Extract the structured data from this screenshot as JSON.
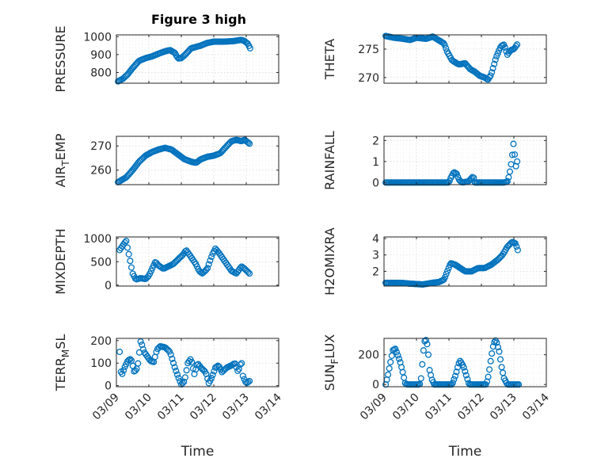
{
  "figure_title": "Figure 3 high",
  "marker_color": "#0072BD",
  "chart_data": [
    {
      "type": "scatter",
      "marker": "circle",
      "title": "Figure 3 high",
      "ylabel": "PRESSURE",
      "ylabel_parts": [
        "PRESSURE"
      ],
      "ylim": [
        740,
        1010
      ],
      "yticks": [
        800,
        900,
        1000
      ],
      "ytick_labels": [
        "800",
        "900",
        "1000"
      ],
      "xlim": [
        0,
        5
      ],
      "xticks": [
        0,
        1,
        2,
        3,
        4,
        5
      ],
      "xtick_labels": [
        "03/09",
        "03/10",
        "03/11",
        "03/12",
        "03/13",
        "03/14"
      ],
      "xlabel": "",
      "grid": "dotted",
      "curve": [
        [
          0.05,
          750
        ],
        [
          0.2,
          765
        ],
        [
          0.35,
          790
        ],
        [
          0.5,
          825
        ],
        [
          0.7,
          865
        ],
        [
          0.9,
          880
        ],
        [
          1.1,
          890
        ],
        [
          1.3,
          905
        ],
        [
          1.5,
          918
        ],
        [
          1.65,
          925
        ],
        [
          1.8,
          910
        ],
        [
          1.9,
          878
        ],
        [
          2.0,
          880
        ],
        [
          2.15,
          905
        ],
        [
          2.3,
          935
        ],
        [
          2.6,
          950
        ],
        [
          2.8,
          965
        ],
        [
          3.0,
          972
        ],
        [
          3.3,
          972
        ],
        [
          3.6,
          975
        ],
        [
          3.85,
          982
        ],
        [
          3.95,
          975
        ],
        [
          4.05,
          960
        ],
        [
          4.12,
          935
        ]
      ],
      "n_points": 110
    },
    {
      "type": "scatter",
      "marker": "circle",
      "ylabel": "THETA",
      "ylabel_parts": [
        "THETA"
      ],
      "ylim": [
        269,
        277.5
      ],
      "yticks": [
        270,
        275
      ],
      "ytick_labels": [
        "270",
        "275"
      ],
      "xlim": [
        0,
        5
      ],
      "xticks": [
        0,
        1,
        2,
        3,
        4,
        5
      ],
      "xtick_labels": [
        "03/09",
        "03/10",
        "03/11",
        "03/12",
        "03/13",
        "03/14"
      ],
      "xlabel": "",
      "grid": "dotted",
      "curve": [
        [
          0.05,
          277.3
        ],
        [
          0.3,
          277
        ],
        [
          0.6,
          276.8
        ],
        [
          0.8,
          276.6
        ],
        [
          1.0,
          277
        ],
        [
          1.3,
          276.8
        ],
        [
          1.5,
          277.2
        ],
        [
          1.7,
          276.5
        ],
        [
          1.85,
          276
        ],
        [
          1.95,
          274.5
        ],
        [
          2.1,
          273
        ],
        [
          2.3,
          272.3
        ],
        [
          2.5,
          272.5
        ],
        [
          2.65,
          271.5
        ],
        [
          2.8,
          271
        ],
        [
          2.95,
          270.3
        ],
        [
          3.1,
          270
        ],
        [
          3.2,
          269.6
        ],
        [
          3.3,
          270.5
        ],
        [
          3.45,
          273.5
        ],
        [
          3.6,
          275.5
        ],
        [
          3.7,
          275.8
        ],
        [
          3.8,
          274
        ],
        [
          3.9,
          274.8
        ],
        [
          4.0,
          275
        ],
        [
          4.1,
          275.8
        ]
      ],
      "n_points": 110
    },
    {
      "type": "scatter",
      "marker": "circle",
      "ylabel": "AIR_TEMP",
      "ylabel_parts": [
        "AIR",
        "T",
        "EMP"
      ],
      "ylim": [
        254,
        274
      ],
      "yticks": [
        260,
        270
      ],
      "ytick_labels": [
        "260",
        "270"
      ],
      "xlim": [
        0,
        5
      ],
      "xticks": [
        0,
        1,
        2,
        3,
        4,
        5
      ],
      "xtick_labels": [
        "03/09",
        "03/10",
        "03/11",
        "03/12",
        "03/13",
        "03/14"
      ],
      "xlabel": "",
      "grid": "dotted",
      "curve": [
        [
          0.05,
          255
        ],
        [
          0.3,
          257
        ],
        [
          0.5,
          260
        ],
        [
          0.7,
          263.5
        ],
        [
          0.9,
          266
        ],
        [
          1.1,
          267.5
        ],
        [
          1.3,
          268.5
        ],
        [
          1.5,
          269.2
        ],
        [
          1.7,
          268.5
        ],
        [
          1.9,
          266.5
        ],
        [
          2.1,
          264.5
        ],
        [
          2.3,
          263.5
        ],
        [
          2.45,
          263
        ],
        [
          2.6,
          264.5
        ],
        [
          2.8,
          265.5
        ],
        [
          3.0,
          266
        ],
        [
          3.2,
          267
        ],
        [
          3.4,
          270
        ],
        [
          3.55,
          272
        ],
        [
          3.7,
          272.5
        ],
        [
          3.85,
          272
        ],
        [
          3.95,
          272.5
        ],
        [
          4.1,
          271
        ]
      ],
      "n_points": 110
    },
    {
      "type": "scatter",
      "marker": "circle",
      "ylabel": "RAINFALL",
      "ylabel_parts": [
        "RAINFALL"
      ],
      "ylim": [
        -0.1,
        2.2
      ],
      "yticks": [
        0,
        1,
        2
      ],
      "ytick_labels": [
        "0",
        "1",
        "2"
      ],
      "xlim": [
        0,
        5
      ],
      "xticks": [
        0,
        1,
        2,
        3,
        4,
        5
      ],
      "xtick_labels": [
        "03/09",
        "03/10",
        "03/11",
        "03/12",
        "03/13",
        "03/14"
      ],
      "xlabel": "",
      "grid": "dotted",
      "curve": [
        [
          0.05,
          0
        ],
        [
          2.0,
          0
        ],
        [
          2.05,
          0.2
        ],
        [
          2.15,
          0.5
        ],
        [
          2.25,
          0.4
        ],
        [
          2.3,
          0.15
        ],
        [
          2.4,
          0
        ],
        [
          2.6,
          0.05
        ],
        [
          2.75,
          0.3
        ],
        [
          2.8,
          0
        ],
        [
          3.7,
          0
        ],
        [
          3.8,
          0.05
        ],
        [
          3.85,
          0.3
        ],
        [
          3.9,
          0.7
        ],
        [
          3.95,
          1.3
        ],
        [
          4.0,
          2.0
        ],
        [
          4.05,
          0.7
        ],
        [
          4.1,
          1.0
        ]
      ],
      "n_points": 110
    },
    {
      "type": "scatter",
      "marker": "circle",
      "ylabel": "MIXDEPTH",
      "ylabel_parts": [
        "MIXDEPTH"
      ],
      "ylim": [
        -20,
        1030
      ],
      "yticks": [
        0,
        500,
        1000
      ],
      "ytick_labels": [
        "0",
        "500",
        "1000"
      ],
      "xlim": [
        0,
        5
      ],
      "xticks": [
        0,
        1,
        2,
        3,
        4,
        5
      ],
      "xtick_labels": [
        "03/09",
        "03/10",
        "03/11",
        "03/12",
        "03/13",
        "03/14"
      ],
      "xlabel": "",
      "grid": "dotted",
      "curve": [
        [
          0.1,
          750
        ],
        [
          0.2,
          850
        ],
        [
          0.3,
          950
        ],
        [
          0.4,
          600
        ],
        [
          0.5,
          250
        ],
        [
          0.6,
          120
        ],
        [
          0.75,
          150
        ],
        [
          0.9,
          130
        ],
        [
          1.0,
          200
        ],
        [
          1.1,
          350
        ],
        [
          1.2,
          500
        ],
        [
          1.3,
          420
        ],
        [
          1.45,
          350
        ],
        [
          1.6,
          400
        ],
        [
          1.75,
          450
        ],
        [
          1.9,
          550
        ],
        [
          2.05,
          650
        ],
        [
          2.15,
          750
        ],
        [
          2.3,
          600
        ],
        [
          2.45,
          450
        ],
        [
          2.55,
          300
        ],
        [
          2.65,
          250
        ],
        [
          2.8,
          350
        ],
        [
          2.95,
          650
        ],
        [
          3.05,
          780
        ],
        [
          3.15,
          700
        ],
        [
          3.3,
          550
        ],
        [
          3.45,
          400
        ],
        [
          3.55,
          300
        ],
        [
          3.7,
          250
        ],
        [
          3.85,
          400
        ],
        [
          3.95,
          350
        ],
        [
          4.1,
          250
        ]
      ],
      "n_points": 100
    },
    {
      "type": "scatter",
      "marker": "circle",
      "ylabel": "H2OMIXRA",
      "ylabel_parts": [
        "H2OMIXRA"
      ],
      "ylim": [
        1.1,
        4.1
      ],
      "yticks": [
        2,
        3,
        4
      ],
      "ytick_labels": [
        "2",
        "3",
        "4"
      ],
      "xlim": [
        0,
        5
      ],
      "xticks": [
        0,
        1,
        2,
        3,
        4,
        5
      ],
      "xtick_labels": [
        "03/09",
        "03/10",
        "03/11",
        "03/12",
        "03/13",
        "03/14"
      ],
      "xlabel": "",
      "grid": "dotted",
      "curve": [
        [
          0.05,
          1.3
        ],
        [
          0.5,
          1.3
        ],
        [
          0.8,
          1.25
        ],
        [
          1.2,
          1.2
        ],
        [
          1.5,
          1.3
        ],
        [
          1.7,
          1.35
        ],
        [
          1.85,
          1.5
        ],
        [
          1.95,
          2.0
        ],
        [
          2.05,
          2.5
        ],
        [
          2.2,
          2.4
        ],
        [
          2.35,
          2.2
        ],
        [
          2.5,
          2.0
        ],
        [
          2.7,
          2.0
        ],
        [
          2.9,
          2.2
        ],
        [
          3.1,
          2.2
        ],
        [
          3.3,
          2.4
        ],
        [
          3.5,
          2.7
        ],
        [
          3.65,
          3.0
        ],
        [
          3.8,
          3.5
        ],
        [
          3.95,
          3.8
        ],
        [
          4.05,
          3.7
        ],
        [
          4.12,
          3.3
        ]
      ],
      "n_points": 110
    },
    {
      "type": "scatter",
      "marker": "circle",
      "ylabel": "TERR_MSL",
      "ylabel_parts": [
        "TERR",
        "M",
        "SL"
      ],
      "ylim": [
        -5,
        210
      ],
      "yticks": [
        0,
        100,
        200
      ],
      "ytick_labels": [
        "0",
        "100",
        "200"
      ],
      "xlim": [
        0,
        5
      ],
      "xticks": [
        0,
        1,
        2,
        3,
        4,
        5
      ],
      "xtick_labels": [
        "03/09",
        "03/10",
        "03/11",
        "03/12",
        "03/13",
        "03/14"
      ],
      "xlabel": "Time",
      "grid": "dotted",
      "curve": [
        [
          0.1,
          150
        ],
        [
          0.15,
          40
        ],
        [
          0.25,
          80
        ],
        [
          0.35,
          110
        ],
        [
          0.45,
          120
        ],
        [
          0.55,
          60
        ],
        [
          0.65,
          80
        ],
        [
          0.75,
          200
        ],
        [
          0.85,
          150
        ],
        [
          0.95,
          130
        ],
        [
          1.05,
          110
        ],
        [
          1.15,
          105
        ],
        [
          1.25,
          160
        ],
        [
          1.35,
          175
        ],
        [
          1.5,
          170
        ],
        [
          1.65,
          150
        ],
        [
          1.8,
          80
        ],
        [
          1.9,
          40
        ],
        [
          2.0,
          5
        ],
        [
          2.1,
          20
        ],
        [
          2.2,
          100
        ],
        [
          2.3,
          120
        ],
        [
          2.4,
          50
        ],
        [
          2.5,
          100
        ],
        [
          2.6,
          80
        ],
        [
          2.75,
          60
        ],
        [
          2.85,
          10
        ],
        [
          2.95,
          40
        ],
        [
          3.05,
          80
        ],
        [
          3.15,
          90
        ],
        [
          3.25,
          60
        ],
        [
          3.4,
          80
        ],
        [
          3.55,
          90
        ],
        [
          3.65,
          100
        ],
        [
          3.75,
          60
        ],
        [
          3.85,
          110
        ],
        [
          3.9,
          40
        ],
        [
          4.0,
          10
        ],
        [
          4.1,
          20
        ]
      ],
      "n_points": 100
    },
    {
      "type": "scatter",
      "marker": "circle",
      "ylabel": "SUN_FLUX",
      "ylabel_parts": [
        "SUN",
        "F",
        "LUX"
      ],
      "ylim": [
        -15,
        310
      ],
      "yticks": [
        0,
        200
      ],
      "ytick_labels": [
        "0",
        "200"
      ],
      "xlim": [
        0,
        5
      ],
      "xticks": [
        0,
        1,
        2,
        3,
        4,
        5
      ],
      "xtick_labels": [
        "03/09",
        "03/10",
        "03/11",
        "03/12",
        "03/13",
        "03/14"
      ],
      "xlabel": "Time",
      "grid": "dotted",
      "curve": [
        [
          0.05,
          0
        ],
        [
          0.12,
          60
        ],
        [
          0.2,
          150
        ],
        [
          0.27,
          230
        ],
        [
          0.35,
          240
        ],
        [
          0.42,
          200
        ],
        [
          0.5,
          150
        ],
        [
          0.58,
          80
        ],
        [
          0.65,
          10
        ],
        [
          0.7,
          0
        ],
        [
          1.1,
          0
        ],
        [
          1.15,
          50
        ],
        [
          1.2,
          200
        ],
        [
          1.25,
          290
        ],
        [
          1.3,
          300
        ],
        [
          1.35,
          250
        ],
        [
          1.4,
          100
        ],
        [
          1.48,
          30
        ],
        [
          1.55,
          0
        ],
        [
          2.1,
          0
        ],
        [
          2.2,
          60
        ],
        [
          2.3,
          140
        ],
        [
          2.35,
          160
        ],
        [
          2.45,
          120
        ],
        [
          2.55,
          50
        ],
        [
          2.62,
          0
        ],
        [
          3.15,
          0
        ],
        [
          3.22,
          60
        ],
        [
          3.3,
          180
        ],
        [
          3.38,
          280
        ],
        [
          3.45,
          300
        ],
        [
          3.55,
          220
        ],
        [
          3.62,
          120
        ],
        [
          3.7,
          40
        ],
        [
          3.8,
          0
        ],
        [
          4.15,
          0
        ]
      ],
      "n_points": 110
    }
  ]
}
